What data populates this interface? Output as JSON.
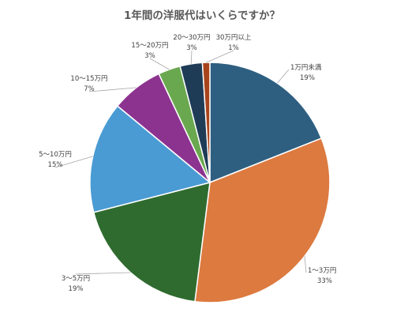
{
  "chart_data": {
    "type": "pie",
    "title": "1年間の洋服代はいくらですか？",
    "categories": [
      "1万円未満",
      "1〜3万円",
      "3〜5万円",
      "5〜10万円",
      "10〜15万円",
      "15〜20万円",
      "20〜30万円",
      "30万円以上"
    ],
    "values": [
      19,
      33,
      19,
      15,
      7,
      3,
      3,
      1
    ],
    "value_labels": [
      "19%",
      "33%",
      "19%",
      "15%",
      "7%",
      "3%",
      "3%",
      "1%"
    ],
    "colors": [
      "#2e5f80",
      "#dc7a40",
      "#2f6b2f",
      "#4a9bd3",
      "#8c3390",
      "#6aa84f",
      "#1f3c57",
      "#a8441c"
    ],
    "start_angle_deg": 0,
    "direction": "clockwise",
    "legend": "none",
    "label_style": "outside-with-leader-lines"
  }
}
